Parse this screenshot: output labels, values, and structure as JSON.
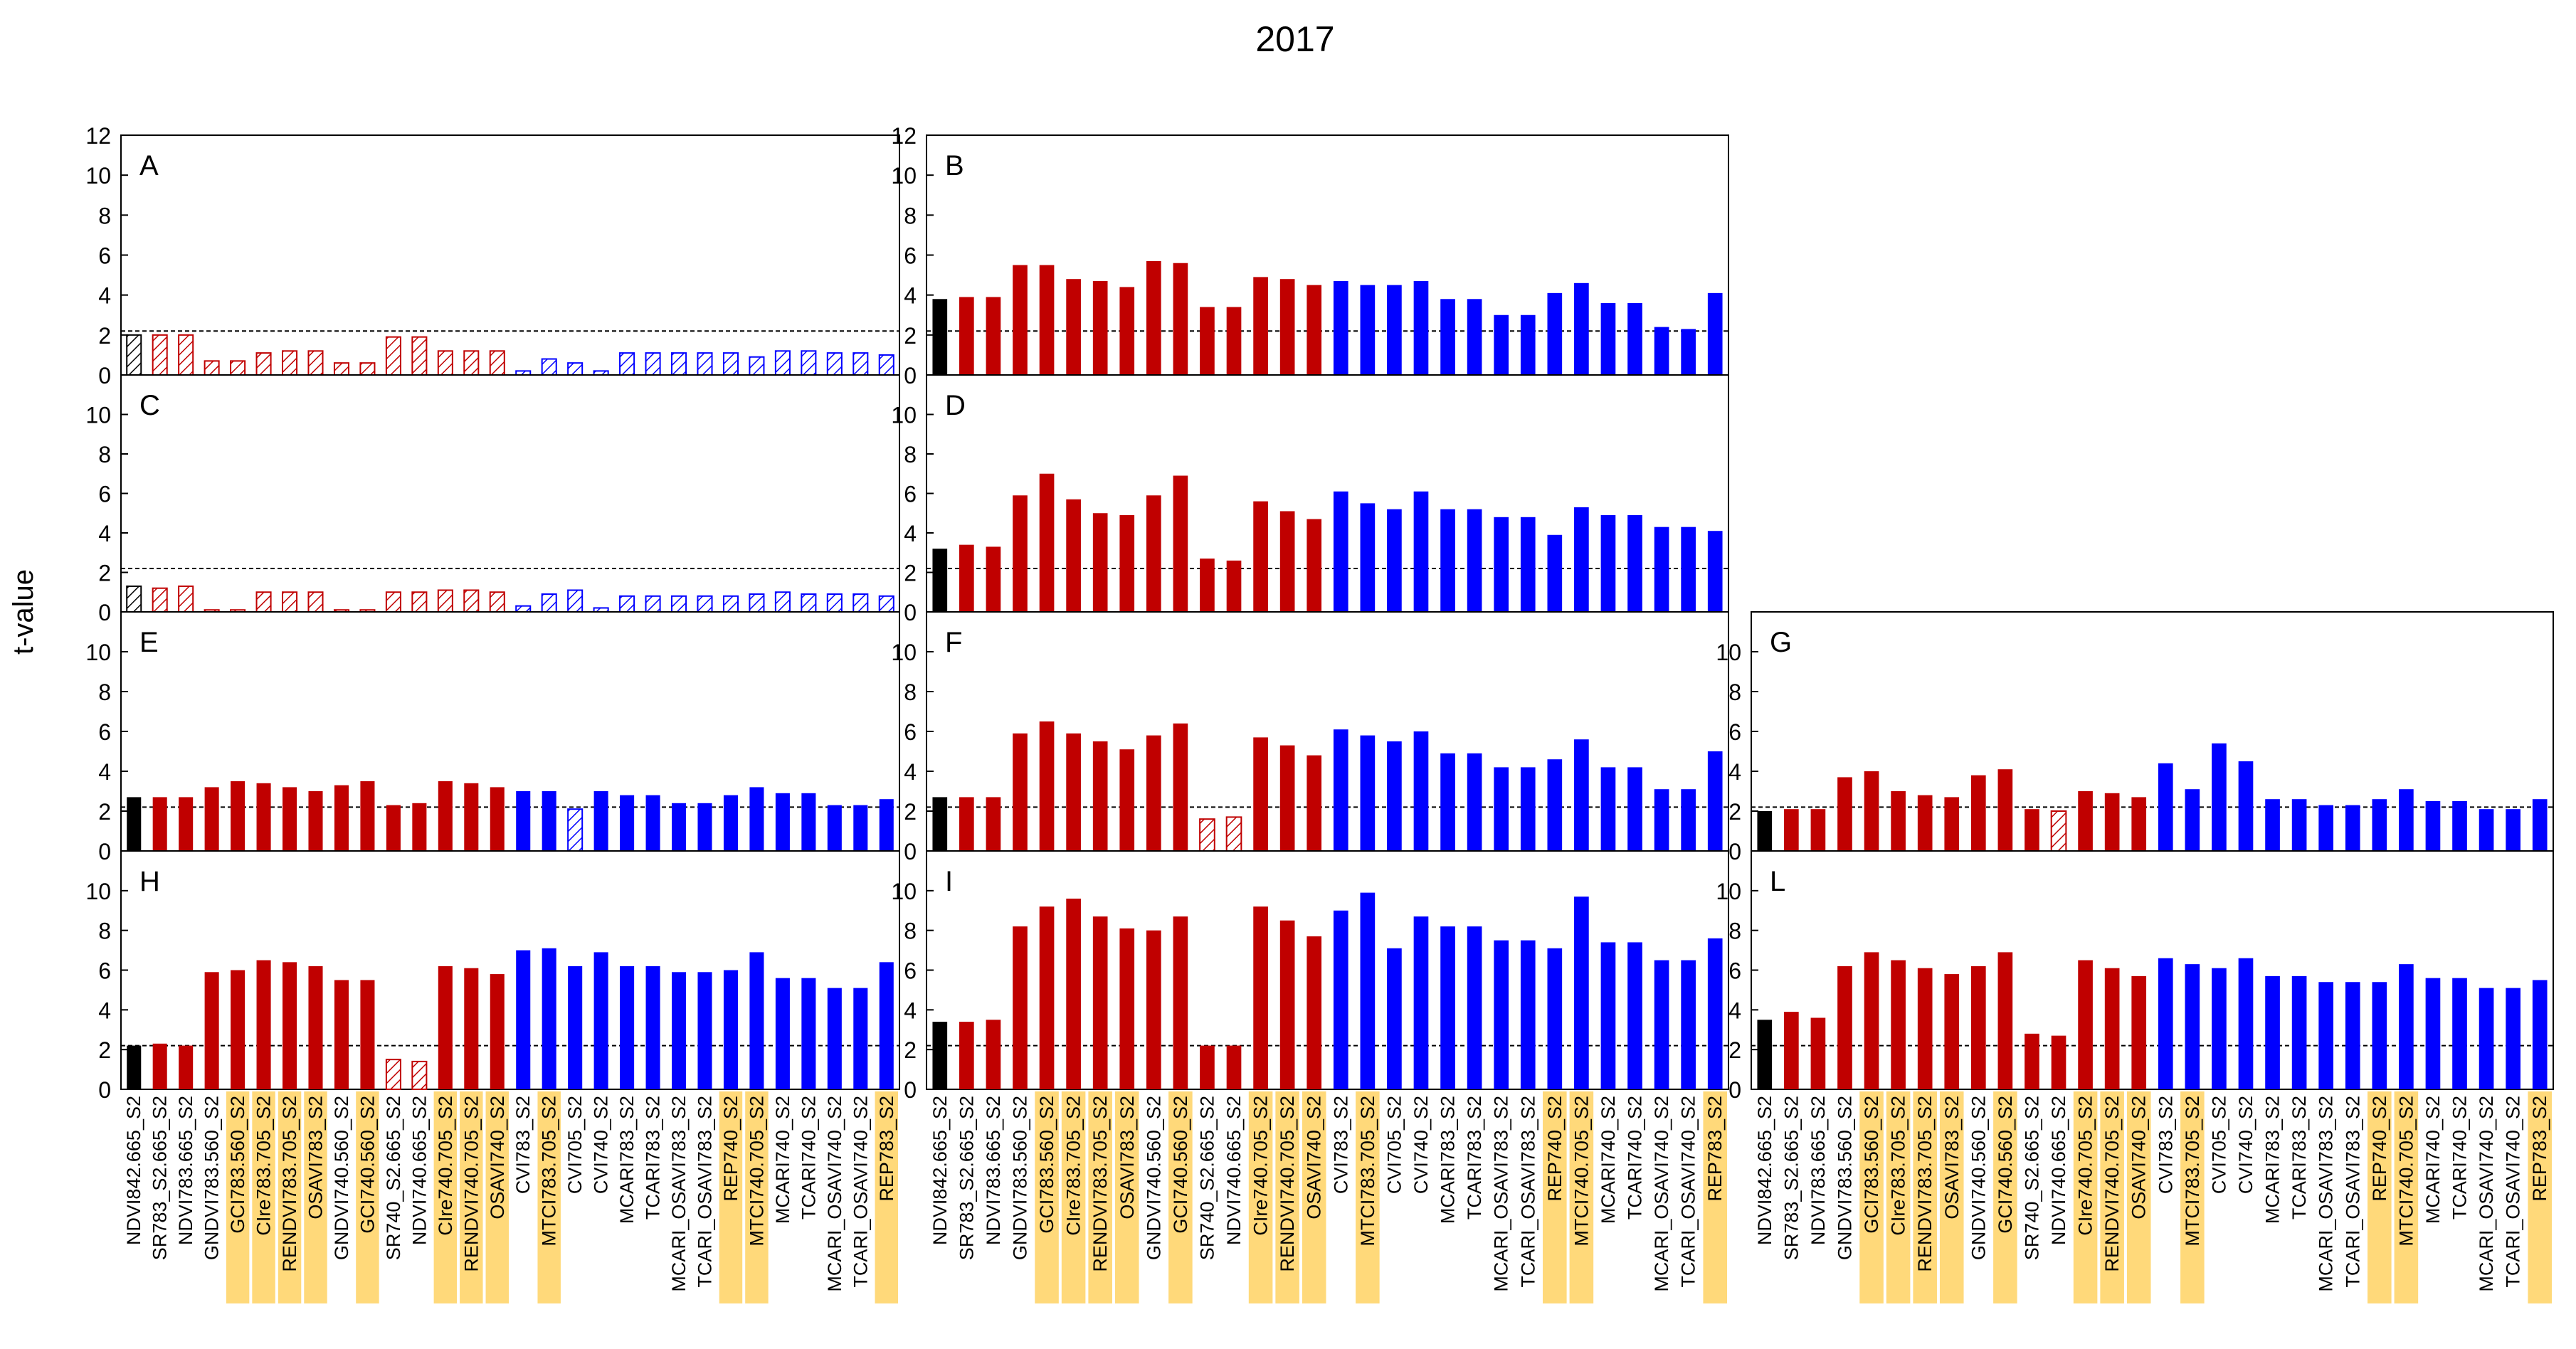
{
  "figure": {
    "title": "2017",
    "ylabel": "t-value"
  },
  "chart_data": {
    "type": "bar",
    "ylim": [
      0,
      12
    ],
    "yticks_top": [
      0,
      2,
      4,
      6,
      8,
      10,
      12
    ],
    "yticks": [
      0,
      2,
      4,
      6,
      8,
      10
    ],
    "threshold": 2.2,
    "colors": {
      "black": "#000000",
      "red": "#c00000",
      "blue": "#0000ff",
      "highlight": "#ffd97a"
    },
    "categories": [
      "NDVI842.665_S2",
      "SR783_S2.665_S2",
      "NDVI783.665_S2",
      "GNDVI783.560_S2",
      "GCI783.560_S2",
      "CIre783.705_S2",
      "RENDVI783.705_S2",
      "OSAVI783_S2",
      "GNDVI740.560_S2",
      "GCI740.560_S2",
      "SR740_S2.665_S2",
      "NDVI740.665_S2",
      "CIre740.705_S2",
      "RENDVI740.705_S2",
      "OSAVI740_S2",
      "CVI783_S2",
      "MTCI783.705_S2",
      "CVI705_S2",
      "CVI740_S2",
      "MCARI783_S2",
      "TCARI783_S2",
      "MCARI_OSAVI783_S2",
      "TCARI_OSAVI783_S2",
      "REP740_S2",
      "MTCI740.705_S2",
      "MCARI740_S2",
      "TCARI740_S2",
      "MCARI_OSAVI740_S2",
      "TCARI_OSAVI740_S2",
      "REP783_S2"
    ],
    "highlighted": [
      "GCI783.560_S2",
      "CIre783.705_S2",
      "RENDVI783.705_S2",
      "OSAVI783_S2",
      "GCI740.560_S2",
      "CIre740.705_S2",
      "RENDVI740.705_S2",
      "OSAVI740_S2",
      "MTCI783.705_S2",
      "REP740_S2",
      "MTCI740.705_S2",
      "REP783_S2"
    ],
    "bar_colors": [
      "black",
      "red",
      "red",
      "red",
      "red",
      "red",
      "red",
      "red",
      "red",
      "red",
      "red",
      "red",
      "red",
      "red",
      "red",
      "blue",
      "blue",
      "blue",
      "blue",
      "blue",
      "blue",
      "blue",
      "blue",
      "blue",
      "blue",
      "blue",
      "blue",
      "blue",
      "blue",
      "blue"
    ],
    "panels": [
      {
        "label": "A",
        "values": [
          2.0,
          2.0,
          2.0,
          0.7,
          0.7,
          1.1,
          1.2,
          1.2,
          0.6,
          0.6,
          1.9,
          1.9,
          1.2,
          1.2,
          1.2,
          0.2,
          0.8,
          0.6,
          0.2,
          1.1,
          1.1,
          1.1,
          1.1,
          1.1,
          0.9,
          1.2,
          1.2,
          1.1,
          1.1,
          1.0
        ],
        "hatched": [
          0,
          1,
          2,
          3,
          4,
          5,
          6,
          7,
          8,
          9,
          10,
          11,
          12,
          13,
          14,
          15,
          16,
          17,
          18,
          19,
          20,
          21,
          22,
          23,
          24,
          25,
          26,
          27,
          28,
          29
        ]
      },
      {
        "label": "B",
        "values": [
          3.8,
          3.9,
          3.9,
          5.5,
          5.5,
          4.8,
          4.7,
          4.4,
          5.7,
          5.6,
          3.4,
          3.4,
          4.9,
          4.8,
          4.5,
          4.7,
          4.5,
          4.5,
          4.7,
          3.8,
          3.8,
          3.0,
          3.0,
          4.1,
          4.6,
          3.6,
          3.6,
          2.4,
          2.3,
          4.1
        ],
        "hatched": []
      },
      {
        "label": "C",
        "values": [
          1.3,
          1.2,
          1.3,
          0.1,
          0.1,
          1.0,
          1.0,
          1.0,
          0.1,
          0.1,
          1.0,
          1.0,
          1.1,
          1.1,
          1.0,
          0.3,
          0.9,
          1.1,
          0.2,
          0.8,
          0.8,
          0.8,
          0.8,
          0.8,
          0.9,
          1.0,
          0.9,
          0.9,
          0.9,
          0.8
        ],
        "hatched": [
          0,
          1,
          2,
          3,
          4,
          5,
          6,
          7,
          8,
          9,
          10,
          11,
          12,
          13,
          14,
          15,
          16,
          17,
          18,
          19,
          20,
          21,
          22,
          23,
          24,
          25,
          26,
          27,
          28,
          29
        ]
      },
      {
        "label": "D",
        "values": [
          3.2,
          3.4,
          3.3,
          5.9,
          7.0,
          5.7,
          5.0,
          4.9,
          5.9,
          6.9,
          2.7,
          2.6,
          5.6,
          5.1,
          4.7,
          6.1,
          5.5,
          5.2,
          6.1,
          5.2,
          5.2,
          4.8,
          4.8,
          3.9,
          5.3,
          4.9,
          4.9,
          4.3,
          4.3,
          4.1
        ],
        "hatched": []
      },
      {
        "label": "E",
        "values": [
          2.7,
          2.7,
          2.7,
          3.2,
          3.5,
          3.4,
          3.2,
          3.0,
          3.3,
          3.5,
          2.3,
          2.4,
          3.5,
          3.4,
          3.2,
          3.0,
          3.0,
          2.1,
          3.0,
          2.8,
          2.8,
          2.4,
          2.4,
          2.8,
          3.2,
          2.9,
          2.9,
          2.3,
          2.3,
          2.6
        ],
        "hatched": [
          17
        ]
      },
      {
        "label": "F",
        "values": [
          2.7,
          2.7,
          2.7,
          5.9,
          6.5,
          5.9,
          5.5,
          5.1,
          5.8,
          6.4,
          1.6,
          1.7,
          5.7,
          5.3,
          4.8,
          6.1,
          5.8,
          5.5,
          6.0,
          4.9,
          4.9,
          4.2,
          4.2,
          4.6,
          5.6,
          4.2,
          4.2,
          3.1,
          3.1,
          5.0
        ],
        "hatched": [
          10,
          11
        ]
      },
      {
        "label": "G",
        "values": [
          2.0,
          2.1,
          2.1,
          3.7,
          4.0,
          3.0,
          2.8,
          2.7,
          3.8,
          4.1,
          2.1,
          2.0,
          3.0,
          2.9,
          2.7,
          4.4,
          3.1,
          5.4,
          4.5,
          2.6,
          2.6,
          2.3,
          2.3,
          2.6,
          3.1,
          2.5,
          2.5,
          2.1,
          2.1,
          2.6
        ],
        "hatched": [
          11
        ]
      },
      {
        "label": "H",
        "values": [
          2.2,
          2.3,
          2.2,
          5.9,
          6.0,
          6.5,
          6.4,
          6.2,
          5.5,
          5.5,
          1.5,
          1.4,
          6.2,
          6.1,
          5.8,
          7.0,
          7.1,
          6.2,
          6.9,
          6.2,
          6.2,
          5.9,
          5.9,
          6.0,
          6.9,
          5.6,
          5.6,
          5.1,
          5.1,
          6.4
        ],
        "hatched": [
          10,
          11
        ]
      },
      {
        "label": "I",
        "values": [
          3.4,
          3.4,
          3.5,
          8.2,
          9.2,
          9.6,
          8.7,
          8.1,
          8.0,
          8.7,
          2.2,
          2.2,
          9.2,
          8.5,
          7.7,
          9.0,
          9.9,
          7.1,
          8.7,
          8.2,
          8.2,
          7.5,
          7.5,
          7.1,
          9.7,
          7.4,
          7.4,
          6.5,
          6.5,
          7.6
        ],
        "hatched": []
      },
      {
        "label": "L",
        "values": [
          3.5,
          3.9,
          3.6,
          6.2,
          6.9,
          6.5,
          6.1,
          5.8,
          6.2,
          6.9,
          2.8,
          2.7,
          6.5,
          6.1,
          5.7,
          6.6,
          6.3,
          6.1,
          6.6,
          5.7,
          5.7,
          5.4,
          5.4,
          5.4,
          6.3,
          5.6,
          5.6,
          5.1,
          5.1,
          5.5
        ],
        "hatched": []
      }
    ]
  }
}
